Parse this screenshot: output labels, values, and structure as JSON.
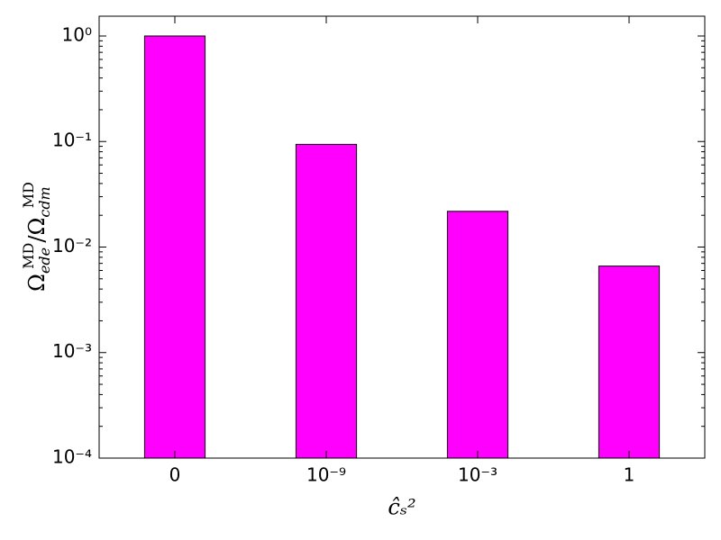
{
  "chart_data": {
    "type": "bar",
    "categories": [
      "0",
      "10⁻⁹",
      "10⁻³",
      "1"
    ],
    "values": [
      1,
      0.094,
      0.0218,
      0.0066
    ],
    "color": "#ff00ff",
    "log_y": true,
    "ylim": [
      0.0001,
      1.54
    ],
    "yticks": [
      {
        "value": 1,
        "label": "10⁰"
      },
      {
        "value": 0.1,
        "label": "10⁻¹"
      },
      {
        "value": 0.01,
        "label": "10⁻²"
      },
      {
        "value": 0.001,
        "label": "10⁻³"
      },
      {
        "value": 0.0001,
        "label": "10⁻⁴"
      }
    ],
    "xlabel": "ĉₛ²",
    "ylabel": [
      "Ω",
      "ede",
      "MD",
      "/",
      "Ω",
      "cdm",
      "MD"
    ]
  }
}
